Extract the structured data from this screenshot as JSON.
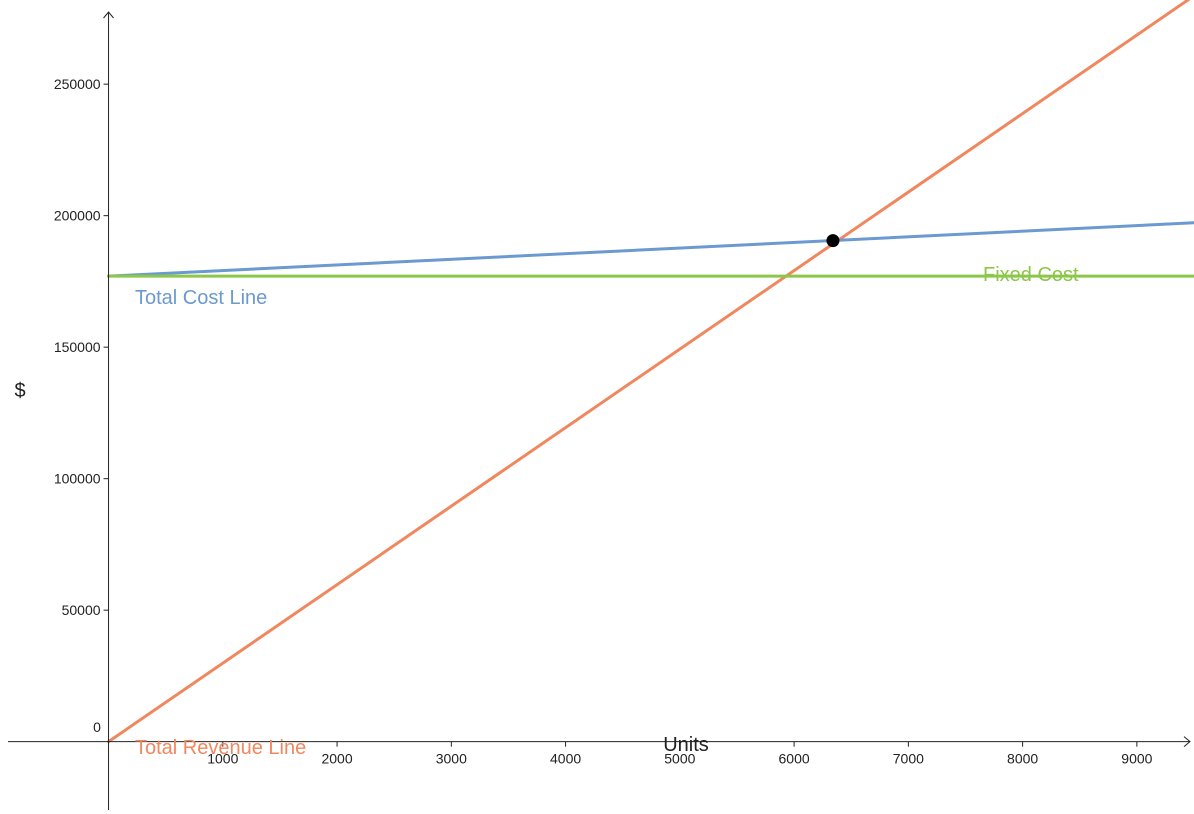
{
  "chart_data": {
    "type": "line",
    "title": "",
    "xlabel": "Units",
    "ylabel": "$",
    "xlim": [
      -950,
      9500
    ],
    "ylim": [
      -27500,
      282000
    ],
    "x_ticks": [
      {
        "value": 1000,
        "label": "1000"
      },
      {
        "value": 2000,
        "label": "2000"
      },
      {
        "value": 3000,
        "label": "3000"
      },
      {
        "value": 4000,
        "label": "4000"
      },
      {
        "value": 5000,
        "label": "5000"
      },
      {
        "value": 6000,
        "label": "6000"
      },
      {
        "value": 7000,
        "label": "7000"
      },
      {
        "value": 8000,
        "label": "8000"
      },
      {
        "value": 9000,
        "label": "9000"
      }
    ],
    "y_ticks": [
      {
        "value": 50000,
        "label": "50000"
      },
      {
        "value": 100000,
        "label": "100000"
      },
      {
        "value": 150000,
        "label": "150000"
      },
      {
        "value": 200000,
        "label": "200000"
      },
      {
        "value": 250000,
        "label": "250000"
      }
    ],
    "origin_label": "0",
    "grid": false,
    "series": [
      {
        "name": "Total Revenue Line",
        "color": "#f0875f",
        "x": [
          0,
          9500
        ],
        "y": [
          0,
          283600
        ]
      },
      {
        "name": "Total Cost Line",
        "color": "#6b9ad0",
        "x": [
          0,
          9500
        ],
        "y": [
          177000,
          197300
        ]
      },
      {
        "name": "Fixed Cost",
        "color": "#8cc64a",
        "x": [
          0,
          9500
        ],
        "y": [
          177000,
          177000
        ]
      }
    ],
    "points": [
      {
        "x": 6340,
        "y": 190500,
        "color": "#000000"
      }
    ]
  }
}
